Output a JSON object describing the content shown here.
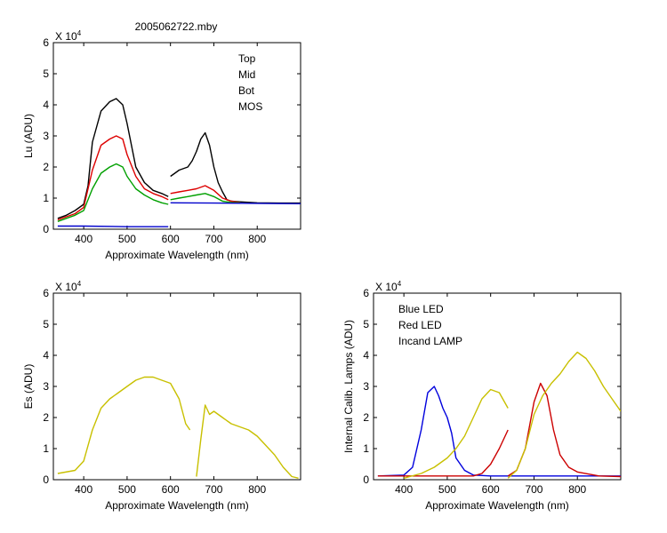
{
  "figure_title": "2005062722.mby",
  "colors": {
    "top": "#000000",
    "mid": "#dd0000",
    "bot": "#00a000",
    "mos": "#0000cc",
    "es": "#c8c000",
    "blue_led": "#0000dd",
    "red_led": "#cc0000",
    "lamp": "#c8c000"
  },
  "chart_data": [
    {
      "type": "line",
      "title": "2005062722.mby",
      "xlabel": "Approximate Wavelength (nm)",
      "ylabel": "Lu (ADU)",
      "multiplier_label": "X 10",
      "multiplier_exp": "4",
      "xlim": [
        330,
        900
      ],
      "ylim": [
        0,
        6
      ],
      "xticks": [
        "400",
        "500",
        "600",
        "700",
        "800"
      ],
      "yticks": [
        "0",
        "1",
        "2",
        "3",
        "4",
        "5",
        "6"
      ],
      "legend_position": "top-right",
      "series": [
        {
          "name": "Top",
          "color_key": "top",
          "segments": [
            {
              "x": [
                340,
                360,
                380,
                400,
                410,
                420,
                440,
                460,
                475,
                490,
                500,
                520,
                540,
                560,
                580,
                595
              ],
              "y": [
                0.35,
                0.45,
                0.6,
                0.8,
                1.4,
                2.8,
                3.8,
                4.1,
                4.2,
                4.0,
                3.4,
                2.0,
                1.5,
                1.25,
                1.15,
                1.05
              ]
            },
            {
              "x": [
                600,
                610,
                620,
                640,
                650,
                660,
                670,
                680,
                690,
                700,
                710,
                720,
                730,
                740,
                760,
                800,
                850,
                900
              ],
              "y": [
                1.7,
                1.8,
                1.9,
                2.0,
                2.2,
                2.5,
                2.9,
                3.1,
                2.7,
                2.0,
                1.5,
                1.2,
                0.95,
                0.9,
                0.88,
                0.85,
                0.84,
                0.84
              ]
            }
          ]
        },
        {
          "name": "Mid",
          "color_key": "mid",
          "segments": [
            {
              "x": [
                340,
                360,
                380,
                400,
                420,
                440,
                460,
                475,
                490,
                500,
                520,
                540,
                560,
                580,
                595
              ],
              "y": [
                0.3,
                0.4,
                0.5,
                0.7,
                1.9,
                2.7,
                2.9,
                3.0,
                2.9,
                2.4,
                1.7,
                1.3,
                1.15,
                1.05,
                0.95
              ]
            },
            {
              "x": [
                600,
                620,
                640,
                660,
                680,
                700,
                720,
                740,
                760
              ],
              "y": [
                1.15,
                1.2,
                1.25,
                1.3,
                1.4,
                1.25,
                1.0,
                0.9,
                0.86
              ]
            }
          ]
        },
        {
          "name": "Bot",
          "color_key": "bot",
          "segments": [
            {
              "x": [
                340,
                360,
                380,
                400,
                420,
                440,
                460,
                475,
                490,
                500,
                520,
                540,
                560,
                580,
                595
              ],
              "y": [
                0.25,
                0.35,
                0.45,
                0.6,
                1.3,
                1.8,
                2.0,
                2.1,
                2.0,
                1.7,
                1.3,
                1.1,
                0.95,
                0.85,
                0.8
              ]
            },
            {
              "x": [
                600,
                620,
                640,
                660,
                680,
                700,
                720,
                740,
                760
              ],
              "y": [
                0.95,
                1.0,
                1.05,
                1.1,
                1.15,
                1.05,
                0.9,
                0.86,
                0.85
              ]
            }
          ]
        },
        {
          "name": "MOS",
          "color_key": "mos",
          "segments": [
            {
              "x": [
                340,
                400,
                500,
                595
              ],
              "y": [
                0.1,
                0.1,
                0.08,
                0.08
              ]
            },
            {
              "x": [
                600,
                700,
                800,
                900
              ],
              "y": [
                0.85,
                0.84,
                0.83,
                0.82
              ]
            }
          ]
        }
      ]
    },
    {
      "type": "line",
      "title": "",
      "xlabel": "Approximate Wavelength (nm)",
      "ylabel": "Es  (ADU)",
      "multiplier_label": "X 10",
      "multiplier_exp": "4",
      "xlim": [
        330,
        900
      ],
      "ylim": [
        0,
        6
      ],
      "xticks": [
        "400",
        "500",
        "600",
        "700",
        "800"
      ],
      "yticks": [
        "0",
        "1",
        "2",
        "3",
        "4",
        "5",
        "6"
      ],
      "series": [
        {
          "name": "",
          "color_key": "es",
          "segments": [
            {
              "x": [
                340,
                380,
                400,
                420,
                440,
                460,
                480,
                500,
                520,
                540,
                560,
                580,
                600,
                620,
                635,
                645
              ],
              "y": [
                0.2,
                0.3,
                0.6,
                1.6,
                2.3,
                2.6,
                2.8,
                3.0,
                3.2,
                3.3,
                3.3,
                3.2,
                3.1,
                2.6,
                1.8,
                1.6
              ]
            },
            {
              "x": [
                660,
                670,
                680,
                690,
                700,
                720,
                740,
                760,
                780,
                800,
                820,
                840,
                860,
                880,
                895
              ],
              "y": [
                0.1,
                1.3,
                2.4,
                2.1,
                2.2,
                2.0,
                1.8,
                1.7,
                1.6,
                1.4,
                1.1,
                0.8,
                0.4,
                0.1,
                0.05
              ]
            }
          ]
        }
      ]
    },
    {
      "type": "line",
      "title": "",
      "xlabel": "Approximate Wavelength (nm)",
      "ylabel": "Internal Calib. Lamps (ADU)",
      "multiplier_label": "X 10",
      "multiplier_exp": "4",
      "xlim": [
        330,
        900
      ],
      "ylim": [
        0,
        6
      ],
      "xticks": [
        "400",
        "500",
        "600",
        "700",
        "800"
      ],
      "yticks": [
        "0",
        "1",
        "2",
        "3",
        "4",
        "5",
        "6"
      ],
      "legend_position": "top-left",
      "series": [
        {
          "name": "Blue LED",
          "color_key": "blue_led",
          "segments": [
            {
              "x": [
                340,
                400,
                420,
                440,
                455,
                470,
                480,
                490,
                500,
                510,
                520,
                540,
                560,
                600,
                900
              ],
              "y": [
                0.12,
                0.15,
                0.4,
                1.6,
                2.8,
                3.0,
                2.7,
                2.3,
                2.0,
                1.5,
                0.7,
                0.3,
                0.15,
                0.12,
                0.12
              ]
            }
          ]
        },
        {
          "name": "Red LED",
          "color_key": "red_led",
          "segments": [
            {
              "x": [
                340,
                560,
                580,
                600,
                620,
                640
              ],
              "y": [
                0.12,
                0.12,
                0.2,
                0.5,
                1.0,
                1.6
              ]
            },
            {
              "x": [
                640,
                660,
                680,
                700,
                715,
                730,
                745,
                760,
                780,
                800,
                850,
                900
              ],
              "y": [
                0.12,
                0.3,
                1.0,
                2.5,
                3.1,
                2.7,
                1.6,
                0.8,
                0.4,
                0.25,
                0.12,
                0.1
              ]
            }
          ]
        },
        {
          "name": "Incand LAMP",
          "color_key": "lamp",
          "segments": [
            {
              "x": [
                400,
                440,
                470,
                500,
                520,
                540,
                560,
                580,
                600,
                620,
                640
              ],
              "y": [
                0.05,
                0.2,
                0.4,
                0.7,
                1.0,
                1.4,
                2.0,
                2.6,
                2.9,
                2.8,
                2.3
              ]
            },
            {
              "x": [
                640,
                660,
                680,
                700,
                720,
                740,
                760,
                780,
                800,
                820,
                840,
                860,
                880,
                900
              ],
              "y": [
                0.05,
                0.3,
                1.0,
                2.1,
                2.7,
                3.1,
                3.4,
                3.8,
                4.1,
                3.9,
                3.5,
                3.0,
                2.6,
                2.2
              ]
            }
          ]
        }
      ]
    }
  ]
}
